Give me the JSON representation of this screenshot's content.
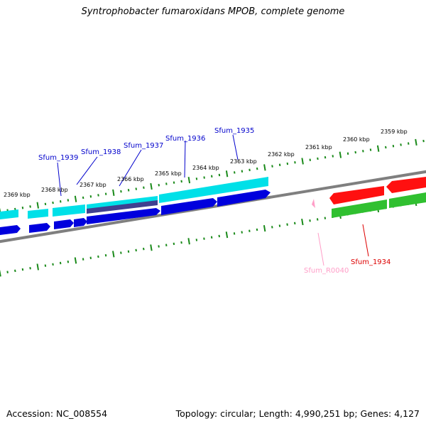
{
  "title": "Syntrophobacter fumaroxidans MPOB, complete genome",
  "footer": {
    "accession": "Accession: NC_008554",
    "summary": "Topology: circular; Length: 4,990,251 bp; Genes: 4,127"
  },
  "colors": {
    "backbone": "#808080",
    "ticks": "#1a8a1a",
    "forward_cds": "#00e0e8",
    "forward_gene": "#0000dd",
    "reverse_cds": "#ff1010",
    "reverse_gene": "#30c030",
    "rna": "#ff9ec8",
    "label_forward": "#0000cc",
    "label_reverse": "#dd0000",
    "label_rna": "#ff9ec8"
  },
  "kbp_labels": [
    "2369 kbp",
    "2368 kbp",
    "2367 kbp",
    "2366 kbp",
    "2365 kbp",
    "2364 kbp",
    "2363 kbp",
    "2362 kbp",
    "2361 kbp",
    "2360 kbp",
    "2359 kbp"
  ],
  "gene_labels": {
    "g1939": "Sfum_1939",
    "g1938": "Sfum_1938",
    "g1937": "Sfum_1937",
    "g1936": "Sfum_1936",
    "g1935": "Sfum_1935",
    "g1934": "Sfum_1934",
    "r0040": "Sfum_R0040"
  }
}
